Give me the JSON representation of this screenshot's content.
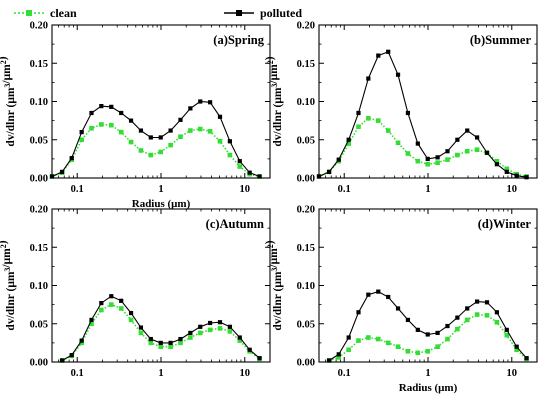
{
  "legend": {
    "items": [
      {
        "label": "clean",
        "color": "#33dd33",
        "marker": "square",
        "line": "dotted"
      },
      {
        "label": "polluted",
        "color": "#000000",
        "marker": "square",
        "line": "solid"
      }
    ],
    "placement": "top-center"
  },
  "chart_data": [
    {
      "type": "line",
      "title": "(a)Spring",
      "xlabel": "Radius (μm)",
      "ylabel": "dv/dlnr (μm³/μm²)",
      "xscale": "log",
      "xlim": [
        0.05,
        20
      ],
      "ylim": [
        0,
        0.2
      ],
      "xticks": [
        0.1,
        1,
        10
      ],
      "xtick_labels": [
        "0.1",
        "1",
        "10"
      ],
      "yticks": [
        0.0,
        0.05,
        0.1,
        0.15,
        0.2
      ],
      "ytick_labels": [
        "0.00",
        "0.05",
        "0.10",
        "0.15",
        "0.20"
      ],
      "x": [
        0.05,
        0.066,
        0.086,
        0.113,
        0.148,
        0.194,
        0.255,
        0.335,
        0.439,
        0.576,
        0.756,
        0.992,
        1.302,
        1.708,
        2.241,
        2.94,
        3.857,
        5.061,
        6.641,
        8.713,
        11.432,
        15.0
      ],
      "series": [
        {
          "name": "clean",
          "values": [
            0.002,
            0.007,
            0.024,
            0.05,
            0.065,
            0.07,
            0.069,
            0.06,
            0.047,
            0.036,
            0.03,
            0.034,
            0.043,
            0.054,
            0.062,
            0.064,
            0.061,
            0.048,
            0.03,
            0.015,
            0.005,
            0.002
          ]
        },
        {
          "name": "polluted",
          "values": [
            0.002,
            0.008,
            0.026,
            0.06,
            0.085,
            0.094,
            0.093,
            0.085,
            0.075,
            0.062,
            0.053,
            0.053,
            0.062,
            0.076,
            0.091,
            0.1,
            0.099,
            0.08,
            0.048,
            0.022,
            0.007,
            0.002
          ]
        }
      ]
    },
    {
      "type": "line",
      "title": "(b)Summer",
      "xlabel": "",
      "ylabel": "dv/dlnr (μm³/μm²)",
      "xscale": "log",
      "xlim": [
        0.05,
        20
      ],
      "ylim": [
        0,
        0.2
      ],
      "xticks": [
        0.1,
        1,
        10
      ],
      "xtick_labels": [
        "0.1",
        "1",
        "10"
      ],
      "yticks": [
        0.0,
        0.05,
        0.1,
        0.15,
        0.2
      ],
      "ytick_labels": [
        "0.00",
        "0.05",
        "0.10",
        "0.15",
        "0.20"
      ],
      "x": [
        0.05,
        0.066,
        0.086,
        0.113,
        0.148,
        0.194,
        0.255,
        0.335,
        0.439,
        0.576,
        0.756,
        0.992,
        1.302,
        1.708,
        2.241,
        2.94,
        3.857,
        5.061,
        6.641,
        8.713,
        11.432,
        15.0
      ],
      "series": [
        {
          "name": "clean",
          "values": [
            0.002,
            0.008,
            0.022,
            0.045,
            0.067,
            0.078,
            0.075,
            0.062,
            0.046,
            0.032,
            0.022,
            0.018,
            0.02,
            0.024,
            0.03,
            0.035,
            0.037,
            0.033,
            0.022,
            0.012,
            0.005,
            0.002
          ]
        },
        {
          "name": "polluted",
          "values": [
            0.002,
            0.008,
            0.024,
            0.05,
            0.085,
            0.13,
            0.16,
            0.165,
            0.135,
            0.085,
            0.045,
            0.025,
            0.027,
            0.035,
            0.05,
            0.062,
            0.053,
            0.033,
            0.018,
            0.008,
            0.003,
            0.001
          ]
        }
      ]
    },
    {
      "type": "line",
      "title": "(c)Autumn",
      "xlabel": "",
      "ylabel": "dv/dlnr (μm³/μm²)",
      "xscale": "log",
      "xlim": [
        0.05,
        20
      ],
      "ylim": [
        0,
        0.2
      ],
      "xticks": [
        0.1,
        1,
        10
      ],
      "xtick_labels": [
        "0.1",
        "1",
        "10"
      ],
      "yticks": [
        0.0,
        0.05,
        0.1,
        0.15,
        0.2
      ],
      "ytick_labels": [
        "0.00",
        "0.05",
        "0.10",
        "0.15",
        "0.20"
      ],
      "x": [
        0.066,
        0.086,
        0.113,
        0.148,
        0.194,
        0.255,
        0.335,
        0.439,
        0.576,
        0.756,
        0.992,
        1.302,
        1.708,
        2.241,
        2.94,
        3.857,
        5.061,
        6.641,
        8.713,
        11.432,
        15.0
      ],
      "series": [
        {
          "name": "clean",
          "values": [
            0.002,
            0.008,
            0.025,
            0.05,
            0.068,
            0.075,
            0.07,
            0.055,
            0.038,
            0.025,
            0.02,
            0.02,
            0.025,
            0.032,
            0.038,
            0.042,
            0.044,
            0.04,
            0.028,
            0.014,
            0.004
          ]
        },
        {
          "name": "polluted",
          "values": [
            0.002,
            0.009,
            0.028,
            0.055,
            0.077,
            0.086,
            0.08,
            0.064,
            0.045,
            0.03,
            0.025,
            0.025,
            0.03,
            0.038,
            0.046,
            0.051,
            0.052,
            0.046,
            0.032,
            0.016,
            0.005
          ]
        }
      ]
    },
    {
      "type": "line",
      "title": "(d)Winter",
      "xlabel": "Radius (μm)",
      "ylabel": "dv/dlnr (μm³/μm²)",
      "xscale": "log",
      "xlim": [
        0.05,
        20
      ],
      "ylim": [
        0,
        0.2
      ],
      "xticks": [
        0.1,
        1,
        10
      ],
      "xtick_labels": [
        "0.1",
        "1",
        "10"
      ],
      "yticks": [
        0.0,
        0.05,
        0.1,
        0.15,
        0.2
      ],
      "ytick_labels": [
        "0.00",
        "0.05",
        "0.10",
        "0.15",
        "0.20"
      ],
      "x": [
        0.066,
        0.086,
        0.113,
        0.148,
        0.194,
        0.255,
        0.335,
        0.439,
        0.576,
        0.756,
        0.992,
        1.302,
        1.708,
        2.241,
        2.94,
        3.857,
        5.061,
        6.641,
        8.713,
        11.432,
        15.0
      ],
      "series": [
        {
          "name": "clean",
          "values": [
            0.002,
            0.006,
            0.016,
            0.028,
            0.032,
            0.03,
            0.025,
            0.02,
            0.014,
            0.012,
            0.014,
            0.02,
            0.03,
            0.043,
            0.055,
            0.062,
            0.061,
            0.052,
            0.035,
            0.016,
            0.004
          ]
        },
        {
          "name": "polluted",
          "values": [
            0.002,
            0.01,
            0.032,
            0.065,
            0.088,
            0.092,
            0.085,
            0.07,
            0.055,
            0.042,
            0.036,
            0.038,
            0.047,
            0.058,
            0.07,
            0.079,
            0.078,
            0.065,
            0.042,
            0.02,
            0.005
          ]
        }
      ]
    }
  ]
}
